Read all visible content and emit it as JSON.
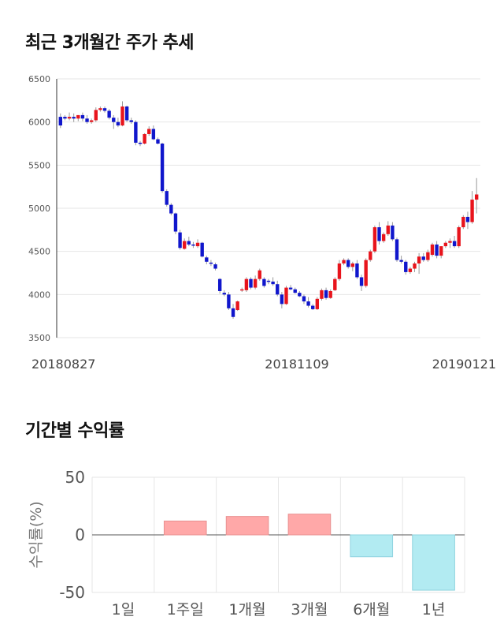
{
  "sections": {
    "price_title": "최근 3개월간 주가 추세",
    "return_title": "기간별 수익률"
  },
  "colors": {
    "up": "#e8141c",
    "down": "#1016cc",
    "bar_positive": "#ffa8a8",
    "bar_negative": "#b2ebf2",
    "grid": "#e6e6e6"
  },
  "chart_data": [
    {
      "type": "candlestick",
      "title": "최근 3개월간 주가 추세",
      "ylim": [
        3500,
        6500
      ],
      "yticks": [
        3500,
        4000,
        4500,
        5000,
        5500,
        6000,
        6500
      ],
      "xtick_labels": [
        "20180827",
        "20181109",
        "20190121"
      ],
      "grid": true,
      "ohlc": [
        [
          6060,
          6100,
          5930,
          5960
        ],
        [
          6060,
          6080,
          6020,
          6040
        ],
        [
          6040,
          6110,
          6020,
          6060
        ],
        [
          6060,
          6100,
          6000,
          6040
        ],
        [
          6040,
          6080,
          6010,
          6080
        ],
        [
          6080,
          6110,
          6010,
          6040
        ],
        [
          6040,
          6080,
          5980,
          6000
        ],
        [
          6000,
          6040,
          5980,
          6020
        ],
        [
          6020,
          6170,
          6000,
          6140
        ],
        [
          6140,
          6180,
          6120,
          6160
        ],
        [
          6160,
          6180,
          6110,
          6130
        ],
        [
          6130,
          6150,
          6030,
          6050
        ],
        [
          6050,
          6080,
          5920,
          6000
        ],
        [
          6000,
          6050,
          5940,
          5960
        ],
        [
          5960,
          6240,
          5950,
          6180
        ],
        [
          6180,
          6190,
          6000,
          6020
        ],
        [
          6020,
          6050,
          5980,
          6000
        ],
        [
          6000,
          6020,
          5730,
          5760
        ],
        [
          5760,
          5780,
          5720,
          5750
        ],
        [
          5750,
          5870,
          5740,
          5860
        ],
        [
          5860,
          5950,
          5840,
          5920
        ],
        [
          5920,
          5960,
          5790,
          5800
        ],
        [
          5800,
          5820,
          5740,
          5750
        ],
        [
          5750,
          5760,
          5180,
          5200
        ],
        [
          5200,
          5220,
          5020,
          5040
        ],
        [
          5040,
          5060,
          4920,
          4940
        ],
        [
          4940,
          4950,
          4700,
          4730
        ],
        [
          4720,
          4750,
          4520,
          4540
        ],
        [
          4530,
          4650,
          4520,
          4620
        ],
        [
          4620,
          4670,
          4560,
          4580
        ],
        [
          4580,
          4610,
          4540,
          4570
        ],
        [
          4560,
          4640,
          4540,
          4600
        ],
        [
          4600,
          4610,
          4430,
          4440
        ],
        [
          4430,
          4450,
          4350,
          4380
        ],
        [
          4370,
          4400,
          4330,
          4360
        ],
        [
          4350,
          4370,
          4280,
          4300
        ],
        [
          4180,
          4190,
          4010,
          4040
        ],
        [
          4020,
          4050,
          3980,
          4000
        ],
        [
          4000,
          4030,
          3820,
          3840
        ],
        [
          3840,
          3890,
          3720,
          3740
        ],
        [
          3820,
          3930,
          3810,
          3920
        ],
        [
          4050,
          4080,
          4030,
          4060
        ],
        [
          4050,
          4200,
          4030,
          4180
        ],
        [
          4180,
          4200,
          4060,
          4080
        ],
        [
          4080,
          4220,
          4060,
          4180
        ],
        [
          4180,
          4300,
          4160,
          4280
        ],
        [
          4180,
          4200,
          4080,
          4100
        ],
        [
          4160,
          4180,
          4120,
          4150
        ],
        [
          4150,
          4200,
          4100,
          4120
        ],
        [
          4120,
          4160,
          3980,
          4000
        ],
        [
          4000,
          4030,
          3840,
          3890
        ],
        [
          3890,
          4100,
          3880,
          4080
        ],
        [
          4080,
          4110,
          4050,
          4060
        ],
        [
          4060,
          4080,
          4010,
          4020
        ],
        [
          4020,
          4040,
          3970,
          3980
        ],
        [
          3980,
          4000,
          3890,
          3920
        ],
        [
          3920,
          3970,
          3850,
          3870
        ],
        [
          3870,
          3890,
          3820,
          3830
        ],
        [
          3830,
          3970,
          3820,
          3950
        ],
        [
          3950,
          4070,
          3930,
          4050
        ],
        [
          4050,
          4080,
          3940,
          3960
        ],
        [
          3960,
          4060,
          3950,
          4040
        ],
        [
          4050,
          4200,
          4040,
          4180
        ],
        [
          4180,
          4400,
          4160,
          4360
        ],
        [
          4360,
          4420,
          4340,
          4400
        ],
        [
          4400,
          4420,
          4300,
          4320
        ],
        [
          4320,
          4380,
          4270,
          4360
        ],
        [
          4360,
          4400,
          4180,
          4200
        ],
        [
          4200,
          4230,
          4040,
          4100
        ],
        [
          4100,
          4420,
          4080,
          4400
        ],
        [
          4400,
          4520,
          4380,
          4500
        ],
        [
          4500,
          4800,
          4480,
          4780
        ],
        [
          4780,
          4840,
          4580,
          4620
        ],
        [
          4620,
          4720,
          4600,
          4700
        ],
        [
          4700,
          4850,
          4680,
          4800
        ],
        [
          4800,
          4840,
          4620,
          4640
        ],
        [
          4640,
          4660,
          4380,
          4400
        ],
        [
          4400,
          4450,
          4360,
          4380
        ],
        [
          4380,
          4400,
          4230,
          4260
        ],
        [
          4260,
          4320,
          4240,
          4300
        ],
        [
          4300,
          4380,
          4260,
          4360
        ],
        [
          4360,
          4480,
          4240,
          4440
        ],
        [
          4440,
          4480,
          4380,
          4400
        ],
        [
          4400,
          4520,
          4380,
          4490
        ],
        [
          4460,
          4600,
          4440,
          4580
        ],
        [
          4580,
          4620,
          4420,
          4450
        ],
        [
          4450,
          4560,
          4420,
          4560
        ],
        [
          4560,
          4620,
          4540,
          4600
        ],
        [
          4600,
          4650,
          4540,
          4620
        ],
        [
          4620,
          4680,
          4540,
          4560
        ],
        [
          4560,
          4800,
          4540,
          4780
        ],
        [
          4780,
          4920,
          4760,
          4900
        ],
        [
          4900,
          4960,
          4760,
          4840
        ],
        [
          4840,
          5200,
          4820,
          5100
        ],
        [
          5100,
          5350,
          4940,
          5160
        ]
      ]
    },
    {
      "type": "bar",
      "title": "기간별 수익률",
      "categories": [
        "1일",
        "1주일",
        "1개월",
        "3개월",
        "6개월",
        "1년"
      ],
      "values": [
        0,
        12,
        16,
        18,
        -19,
        -48
      ],
      "ylabel": "수익률(%)",
      "ylim": [
        -50,
        50
      ],
      "yticks": [
        -50,
        0,
        50
      ],
      "grid": true
    }
  ]
}
